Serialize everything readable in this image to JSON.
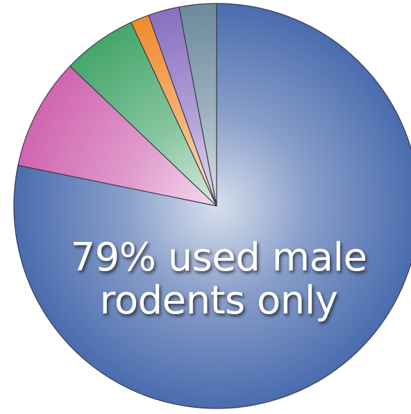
{
  "chart_data": {
    "type": "pie",
    "title": "",
    "annotation": [
      "79% used male",
      "rodents only"
    ],
    "slices": [
      {
        "value": 79,
        "color": "#4a6cae"
      },
      {
        "value": 9,
        "color": "#d065b0"
      },
      {
        "value": 6,
        "color": "#45a66a"
      },
      {
        "value": 1.5,
        "color": "#f08a2c"
      },
      {
        "value": 2.5,
        "color": "#8a6fc2"
      },
      {
        "value": 3,
        "color": "#6b8a9c"
      }
    ]
  }
}
